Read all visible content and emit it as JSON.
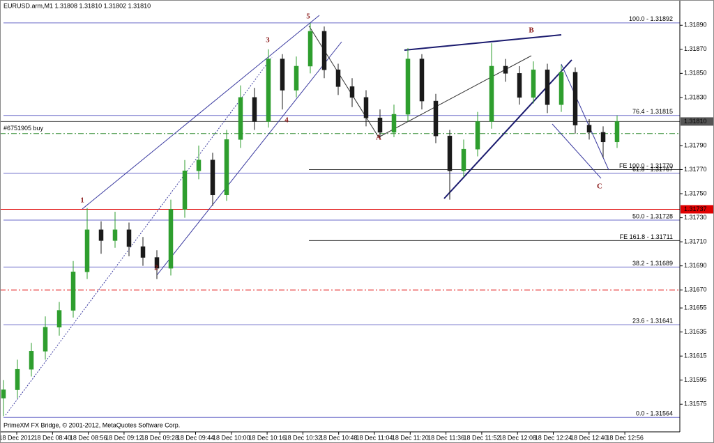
{
  "chart_data": {
    "type": "candlestick",
    "title": "EURUSD.arm,M1  1.31808 1.31810 1.31802 1.31810",
    "footer": "PrimeXM FX Bridge, © 2001-2012, MetaQuotes Software Corp.",
    "x_labels": [
      "18 Dec 2012",
      "18 Dec 08:40",
      "18 Dec 08:56",
      "18 Dec 09:12",
      "18 Dec 09:28",
      "18 Dec 09:44",
      "18 Dec 10:00",
      "18 Dec 10:16",
      "18 Dec 10:32",
      "18 Dec 10:48",
      "18 Dec 11:04",
      "18 Dec 11:20",
      "18 Dec 11:36",
      "18 Dec 11:52",
      "18 Dec 12:08",
      "18 Dec 12:24",
      "18 Dec 12:40",
      "18 Dec 12:56"
    ],
    "open": [
      1.3158,
      1.31587,
      1.31604,
      1.31619,
      1.31639,
      1.31653,
      1.31685,
      1.3172,
      1.31711,
      1.3172,
      1.31706,
      1.31697,
      1.31688,
      1.31737,
      1.31769,
      1.31778,
      1.31749,
      1.31795,
      1.3183,
      1.3181,
      1.31862,
      1.31836,
      1.31856,
      1.31885,
      1.31853,
      1.31839,
      1.3183,
      1.31813,
      1.31801,
      1.31816,
      1.31862,
      1.31827,
      1.31798,
      1.31769,
      1.31787,
      1.3181,
      1.31856,
      1.3185,
      1.3183,
      1.31853,
      1.31824,
      1.31851,
      1.31807,
      1.31801,
      1.31793
    ],
    "high": [
      1.31595,
      1.31612,
      1.31626,
      1.31648,
      1.3166,
      1.31694,
      1.31738,
      1.31727,
      1.31735,
      1.31726,
      1.31714,
      1.31703,
      1.31745,
      1.31778,
      1.3179,
      1.31784,
      1.31803,
      1.3184,
      1.31838,
      1.3187,
      1.31866,
      1.31864,
      1.31892,
      1.31889,
      1.31858,
      1.31846,
      1.31836,
      1.3182,
      1.31824,
      1.31871,
      1.31866,
      1.31833,
      1.31803,
      1.31795,
      1.31818,
      1.31875,
      1.31862,
      1.31856,
      1.3186,
      1.31858,
      1.31857,
      1.31855,
      1.31812,
      1.31806,
      1.31815
    ],
    "low": [
      1.31565,
      1.3158,
      1.31598,
      1.31612,
      1.31632,
      1.31647,
      1.31679,
      1.317,
      1.31705,
      1.31698,
      1.3169,
      1.31679,
      1.31682,
      1.3173,
      1.31762,
      1.3174,
      1.31744,
      1.31788,
      1.31803,
      1.31805,
      1.3182,
      1.3183,
      1.3185,
      1.31846,
      1.31832,
      1.31822,
      1.31806,
      1.31795,
      1.31797,
      1.3181,
      1.3182,
      1.31792,
      1.31745,
      1.31764,
      1.31781,
      1.31804,
      1.31843,
      1.31824,
      1.31825,
      1.31817,
      1.31818,
      1.318,
      1.31795,
      1.3178,
      1.31788
    ],
    "close": [
      1.31587,
      1.31604,
      1.31619,
      1.31639,
      1.31653,
      1.31685,
      1.3172,
      1.31711,
      1.3172,
      1.31706,
      1.31697,
      1.31688,
      1.31737,
      1.31769,
      1.31778,
      1.31749,
      1.31795,
      1.3183,
      1.3181,
      1.31862,
      1.31836,
      1.31856,
      1.31885,
      1.31853,
      1.31839,
      1.3183,
      1.31813,
      1.31801,
      1.31816,
      1.31862,
      1.31827,
      1.31798,
      1.31769,
      1.31787,
      1.3181,
      1.31856,
      1.3185,
      1.3183,
      1.31853,
      1.31824,
      1.31851,
      1.31807,
      1.31801,
      1.31793,
      1.3181
    ],
    "up_color": "#2e9e2e",
    "down_color": "#1a1a1a",
    "ylim": [
      1.31552,
      1.31911
    ],
    "yticks": [
      {
        "value": 1.3189,
        "label": "1.31890"
      },
      {
        "value": 1.3187,
        "label": "1.31870"
      },
      {
        "value": 1.3185,
        "label": "1.31850"
      },
      {
        "value": 1.3183,
        "label": "1.31830"
      },
      {
        "value": 1.3179,
        "label": "1.31790"
      },
      {
        "value": 1.3177,
        "label": "1.31770"
      },
      {
        "value": 1.3175,
        "label": "1.31750"
      },
      {
        "value": 1.3173,
        "label": "1.31730"
      },
      {
        "value": 1.3171,
        "label": "1.31710"
      },
      {
        "value": 1.3169,
        "label": "1.31690"
      },
      {
        "value": 1.3167,
        "label": "1.31670"
      },
      1.31655,
      1.31635,
      1.31615,
      1.31595,
      1.31575
    ],
    "price_boxes": [
      {
        "value": 1.3181,
        "label": "1.31810",
        "color": "#555555"
      },
      {
        "value": 1.31737,
        "label": "1.31737",
        "color": "#e00000"
      }
    ],
    "fib_levels": [
      {
        "label": "100.0 - 1.31892",
        "value": 1.31892
      },
      {
        "label": "76.4 - 1.31815",
        "value": 1.31815
      },
      {
        "label": "61.8 - 1.31767",
        "value": 1.31767
      },
      {
        "label": "50.0 - 1.31728",
        "value": 1.31728
      },
      {
        "label": "38.2 - 1.31689",
        "value": 1.31689
      },
      {
        "label": "23.6 - 1.31641",
        "value": 1.31641
      },
      {
        "label": "0.0 - 1.31564",
        "value": 1.31564
      }
    ],
    "fib_color": "#6a6ac8",
    "fe_levels": [
      {
        "label": "FE 100.0 - 1.31770",
        "value": 1.3177
      },
      {
        "label": "FE 161.8 - 1.31711",
        "value": 1.31711
      }
    ],
    "order_line": {
      "label": "#6751905 buy",
      "value": 1.318,
      "color": "#2e8b2e"
    },
    "level_line": {
      "value": 1.3167,
      "color": "#e00000"
    },
    "wave_labels": [
      "1",
      "2",
      "3",
      "4",
      "5",
      "A",
      "B",
      "C"
    ]
  }
}
